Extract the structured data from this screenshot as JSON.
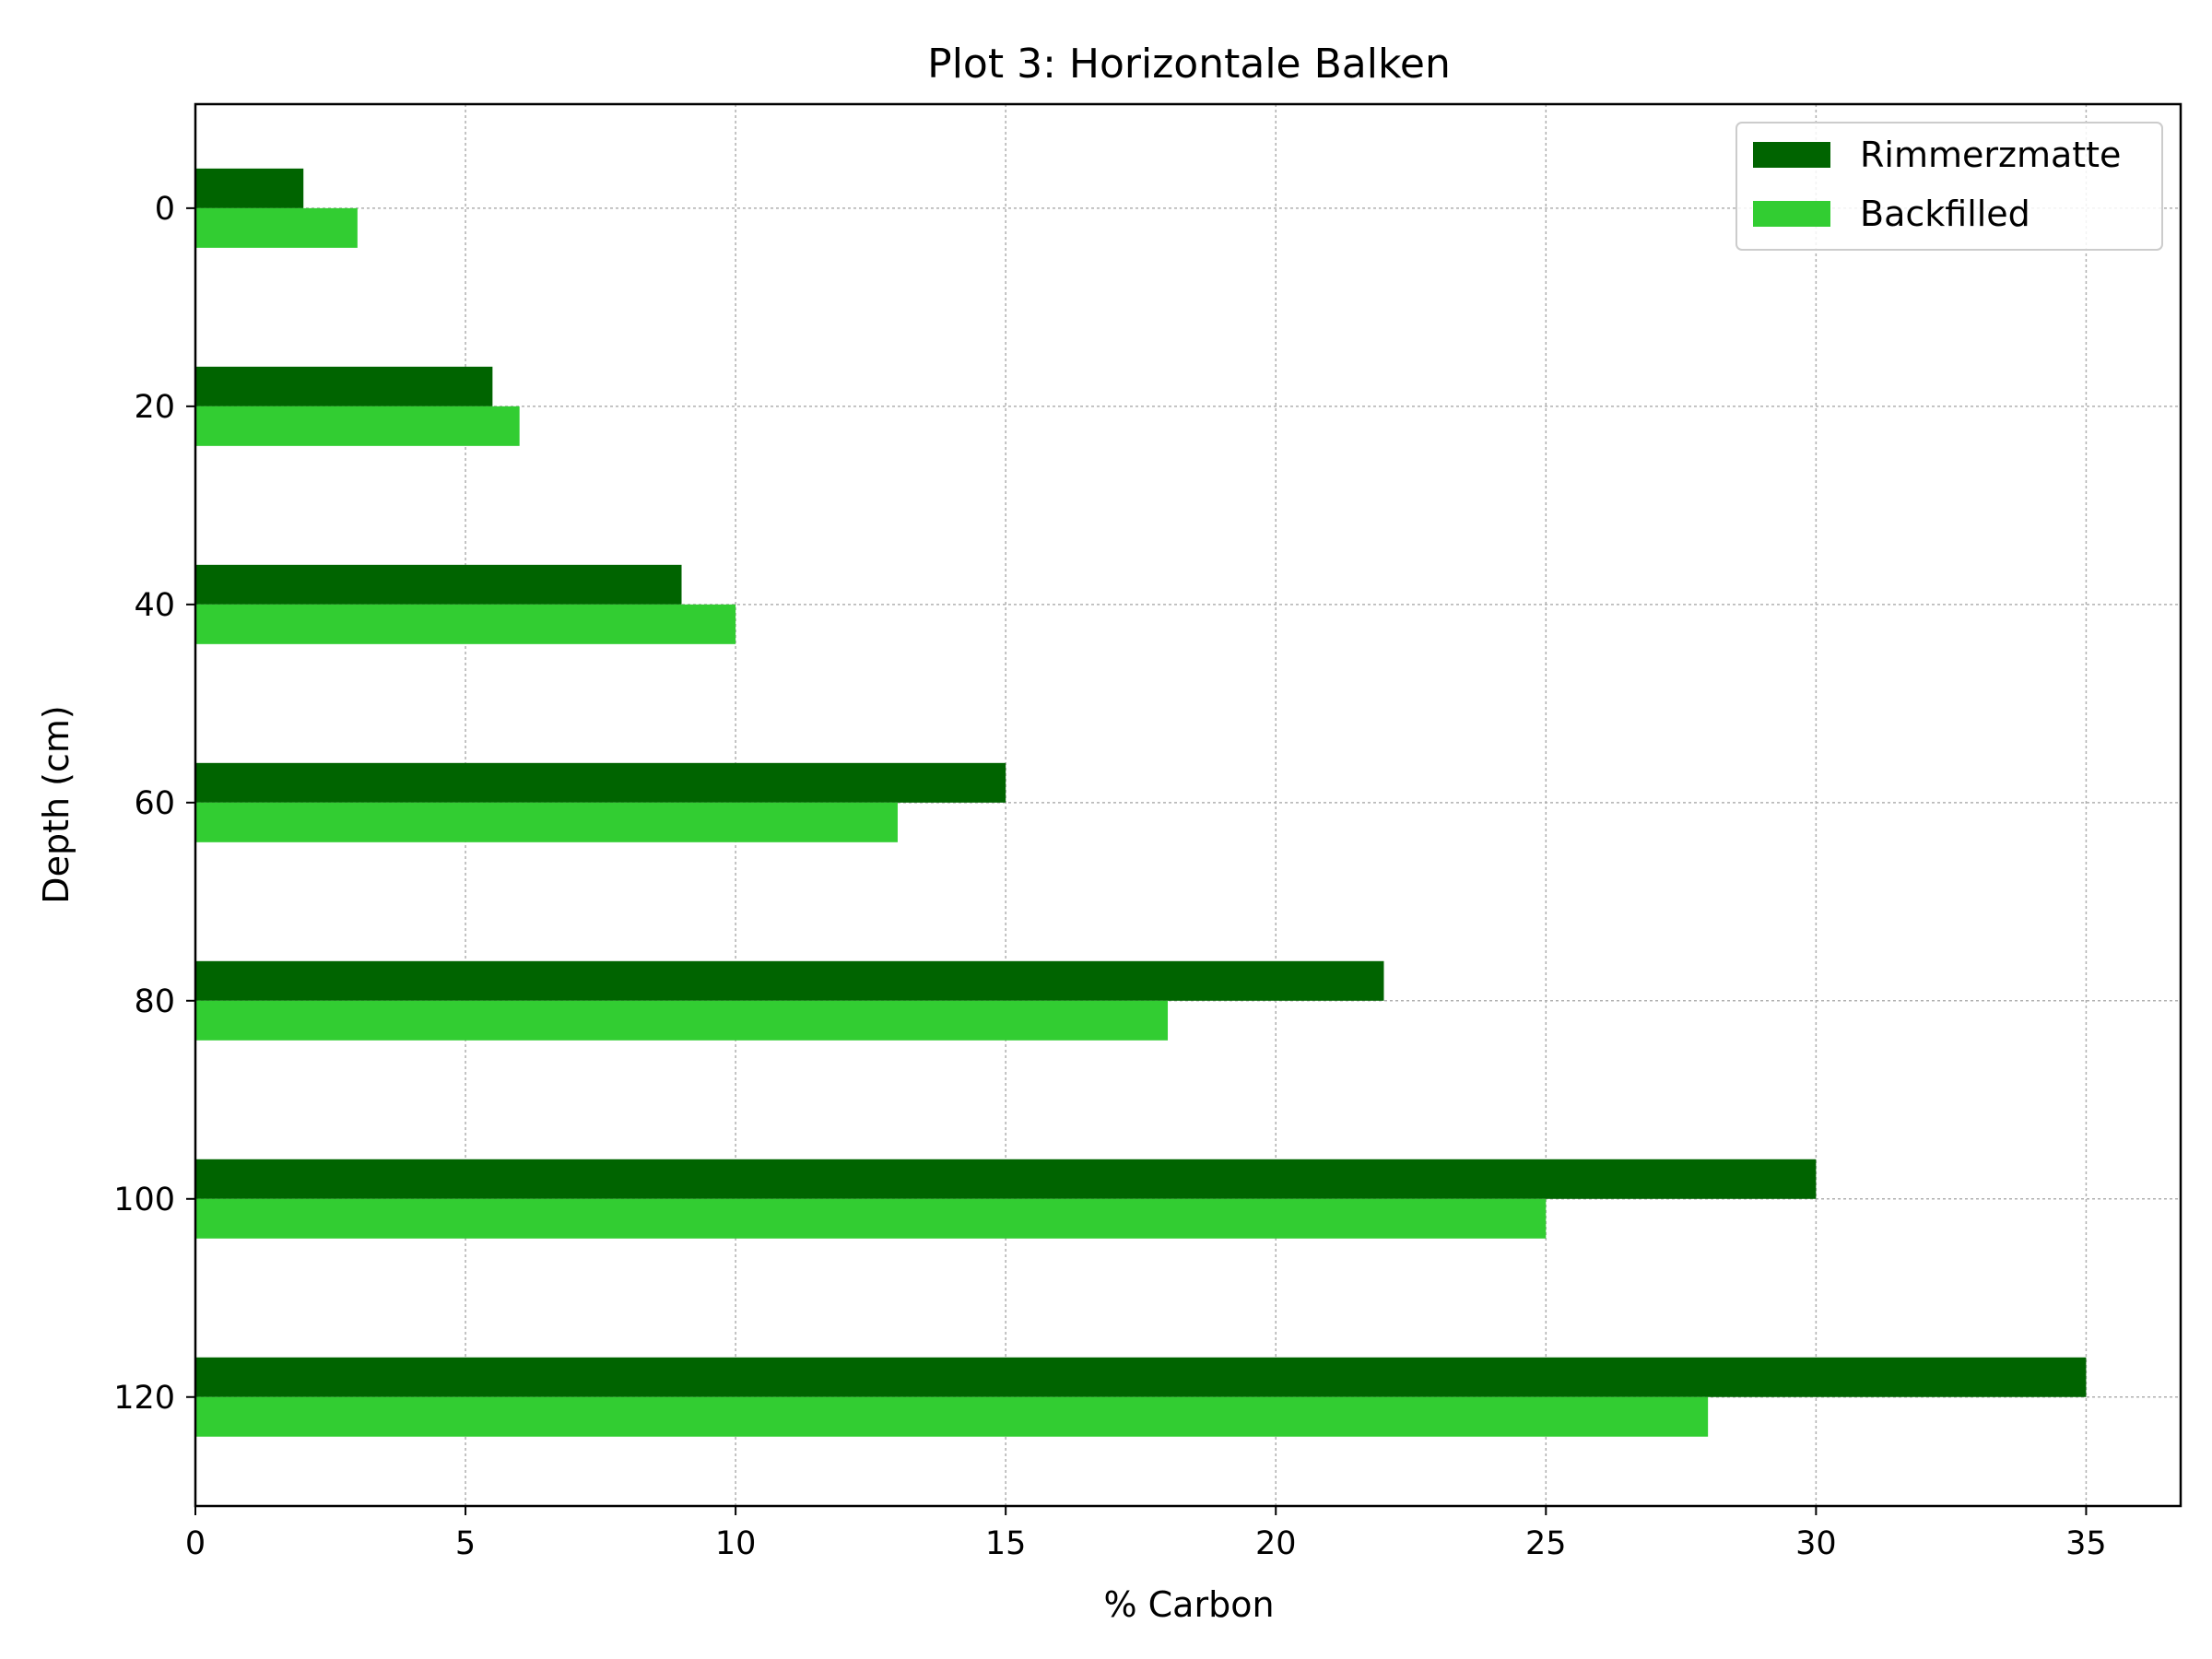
{
  "chart_data": {
    "type": "bar",
    "orientation": "horizontal",
    "title": "Plot 3: Horizontale Balken",
    "xlabel": "% Carbon",
    "ylabel": "Depth (cm)",
    "xlim": [
      0,
      36.75
    ],
    "ylim": [
      131,
      -10.5
    ],
    "y_inverted": true,
    "xticks": [
      0,
      5,
      10,
      15,
      20,
      25,
      30,
      35
    ],
    "yticks": [
      0,
      20,
      40,
      60,
      80,
      100,
      120
    ],
    "categories": [
      0,
      20,
      40,
      60,
      80,
      100,
      120
    ],
    "grid": true,
    "legend_position": "top-right",
    "series": [
      {
        "name": "Rimmerzmatte",
        "color": "#006400",
        "values": [
          2,
          5.5,
          9,
          15,
          22,
          30,
          35
        ]
      },
      {
        "name": "Backfilled",
        "color": "#32CD32",
        "values": [
          3,
          6,
          10,
          13,
          18,
          25,
          28
        ]
      }
    ]
  }
}
